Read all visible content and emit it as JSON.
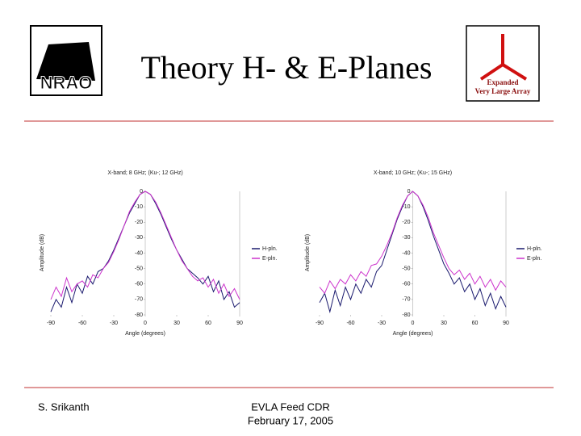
{
  "slide": {
    "title": "Theory H- & E-Planes",
    "logo_left": "NRAO",
    "logo_right": [
      "Expanded",
      "Very Large Array"
    ],
    "footer_left": "S. Srikanth",
    "footer_center": [
      "EVLA Feed CDR",
      "February 17, 2005"
    ]
  },
  "chart_data": [
    {
      "type": "line",
      "title": "X-band; 8 GHz; (Ku-; 12 GHz)",
      "x_label": "Angle (degrees)",
      "y_label": "Amplitude (dB)",
      "x": [
        -90,
        -85,
        -80,
        -75,
        -70,
        -65,
        -60,
        -55,
        -50,
        -45,
        -40,
        -35,
        -30,
        -25,
        -20,
        -15,
        -10,
        -5,
        0,
        5,
        10,
        15,
        20,
        25,
        30,
        35,
        40,
        45,
        50,
        55,
        60,
        65,
        70,
        75,
        80,
        85,
        90
      ],
      "xlim": [
        -90,
        90
      ],
      "xticks": [
        -90,
        -60,
        -30,
        0,
        30,
        60,
        90
      ],
      "ylim": [
        -80,
        0
      ],
      "yticks": [
        0,
        -10,
        -20,
        -30,
        -40,
        -50,
        -60,
        -70,
        -80
      ],
      "series": [
        {
          "name": "H-pln.",
          "color": "#1a1a6e",
          "values": [
            -78,
            -70,
            -75,
            -62,
            -72,
            -60,
            -66,
            -55,
            -60,
            -52,
            -50,
            -45,
            -38,
            -30,
            -22,
            -14,
            -8,
            -2,
            0,
            -2,
            -8,
            -15,
            -23,
            -31,
            -38,
            -44,
            -50,
            -53,
            -56,
            -60,
            -55,
            -65,
            -58,
            -70,
            -65,
            -75,
            -72
          ]
        },
        {
          "name": "E-pln.",
          "color": "#cc33cc",
          "values": [
            -70,
            -62,
            -68,
            -56,
            -65,
            -60,
            -58,
            -62,
            -54,
            -56,
            -50,
            -46,
            -39,
            -31,
            -22,
            -13,
            -7,
            -2,
            0,
            -2,
            -7,
            -14,
            -22,
            -30,
            -38,
            -45,
            -50,
            -55,
            -58,
            -56,
            -62,
            -57,
            -66,
            -60,
            -68,
            -63,
            -70
          ]
        }
      ]
    },
    {
      "type": "line",
      "title": "X-band; 10 GHz; (Ku-; 15 GHz)",
      "x_label": "Angle (degrees)",
      "y_label": "Amplitude (dB)",
      "x": [
        -90,
        -85,
        -80,
        -75,
        -70,
        -65,
        -60,
        -55,
        -50,
        -45,
        -40,
        -35,
        -30,
        -25,
        -20,
        -15,
        -10,
        -5,
        0,
        5,
        10,
        15,
        20,
        25,
        30,
        35,
        40,
        45,
        50,
        55,
        60,
        65,
        70,
        75,
        80,
        85,
        90
      ],
      "xlim": [
        -90,
        90
      ],
      "xticks": [
        -90,
        -60,
        -30,
        0,
        30,
        60,
        90
      ],
      "ylim": [
        -80,
        0
      ],
      "yticks": [
        0,
        -10,
        -20,
        -30,
        -40,
        -50,
        -60,
        -70,
        -80
      ],
      "series": [
        {
          "name": "H-pln.",
          "color": "#1a1a6e",
          "values": [
            -72,
            -66,
            -78,
            -64,
            -74,
            -62,
            -70,
            -60,
            -66,
            -57,
            -62,
            -52,
            -48,
            -38,
            -28,
            -18,
            -10,
            -3,
            0,
            -3,
            -10,
            -19,
            -29,
            -38,
            -47,
            -53,
            -60,
            -56,
            -65,
            -60,
            -70,
            -63,
            -74,
            -66,
            -76,
            -68,
            -75
          ]
        },
        {
          "name": "E-pln.",
          "color": "#cc33cc",
          "values": [
            -62,
            -66,
            -58,
            -63,
            -57,
            -60,
            -54,
            -58,
            -52,
            -55,
            -48,
            -47,
            -42,
            -35,
            -27,
            -17,
            -9,
            -3,
            0,
            -3,
            -9,
            -17,
            -27,
            -35,
            -43,
            -50,
            -54,
            -51,
            -57,
            -53,
            -60,
            -55,
            -62,
            -57,
            -64,
            -58,
            -62
          ]
        }
      ]
    }
  ]
}
